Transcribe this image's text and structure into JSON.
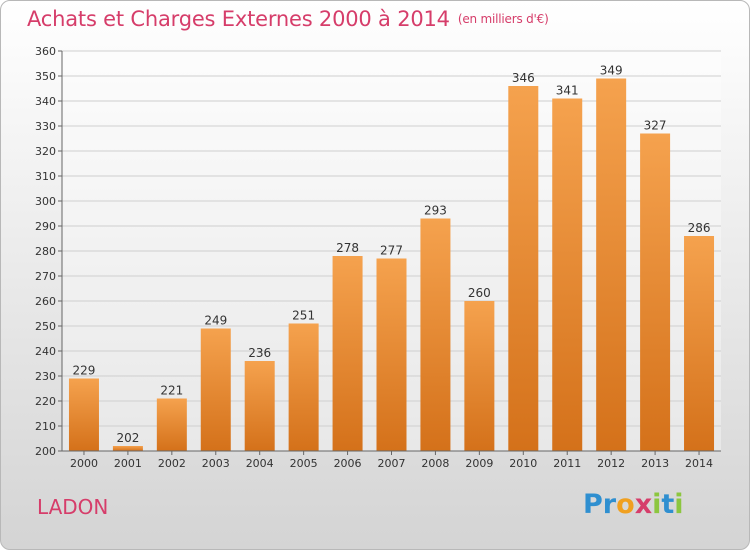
{
  "title": "Achats et Charges Externes 2000 à 2014",
  "unit": "(en milliers d'€)",
  "commune": "LADON",
  "logo": {
    "letters": [
      "P",
      "r",
      "o",
      "x",
      "i",
      "t",
      "i"
    ],
    "colors": [
      "#2f8fd0",
      "#2f8fd0",
      "#f0a020",
      "#d63d6a",
      "#8cc63f",
      "#2f8fd0",
      "#8cc63f"
    ]
  },
  "colors": {
    "bar_top": "#f5a24e",
    "bar_bottom": "#d4711a",
    "title": "#d63d6a"
  },
  "chart_data": {
    "type": "bar",
    "title": "Achats et Charges Externes 2000 à 2014",
    "categories": [
      "2000",
      "2001",
      "2002",
      "2003",
      "2004",
      "2005",
      "2006",
      "2007",
      "2008",
      "2009",
      "2010",
      "2011",
      "2012",
      "2013",
      "2014"
    ],
    "values": [
      229,
      202,
      221,
      249,
      236,
      251,
      278,
      277,
      293,
      260,
      346,
      341,
      349,
      327,
      286
    ],
    "ylim": [
      200,
      360
    ],
    "yticks": [
      200,
      210,
      220,
      230,
      240,
      250,
      260,
      270,
      280,
      290,
      300,
      310,
      320,
      330,
      340,
      350,
      360
    ],
    "grid": true
  }
}
